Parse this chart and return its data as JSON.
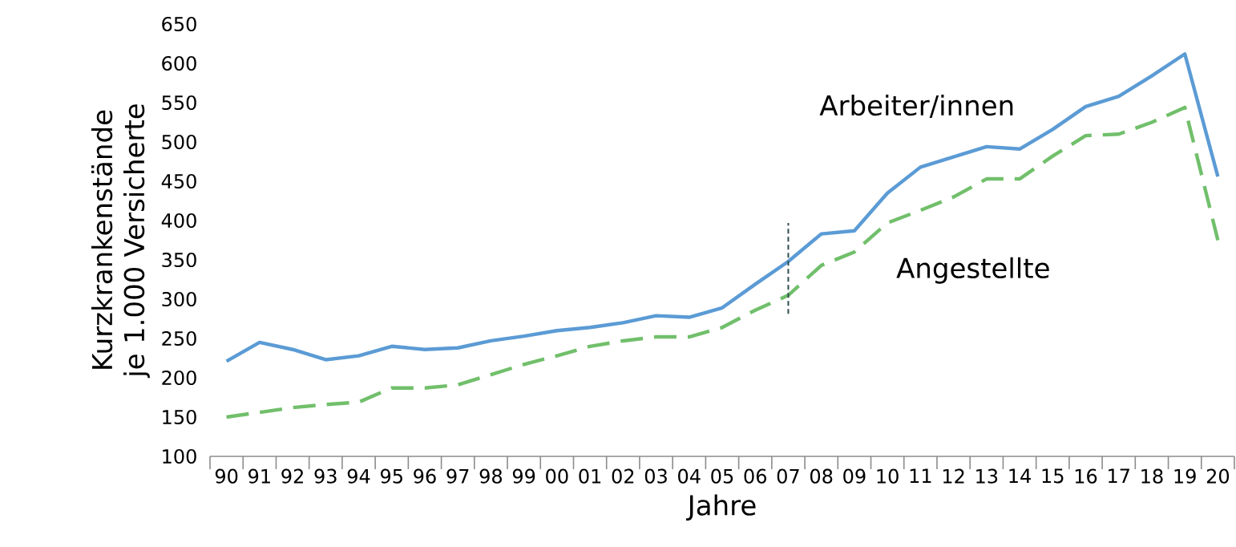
{
  "chart_data": {
    "type": "line",
    "xlabel": "Jahre",
    "ylabel": "Kurzkrankenstände je 1.000 Versicherte",
    "categories": [
      "90",
      "91",
      "92",
      "93",
      "94",
      "95",
      "96",
      "97",
      "98",
      "99",
      "00",
      "01",
      "02",
      "03",
      "04",
      "05",
      "06",
      "07",
      "08",
      "09",
      "10",
      "11",
      "12",
      "13",
      "14",
      "15",
      "16",
      "17",
      "18",
      "19",
      "20"
    ],
    "series": [
      {
        "name": "Arbeiter/innen",
        "color": "#5b9bd5",
        "line_style": "solid",
        "values": [
          221,
          245,
          236,
          223,
          228,
          240,
          236,
          238,
          247,
          253,
          260,
          264,
          270,
          279,
          277,
          289,
          319,
          348,
          383,
          387,
          435,
          468,
          481,
          494,
          491,
          516,
          545,
          558,
          584,
          612,
          456
        ]
      },
      {
        "name": "Angestellte",
        "color": "#71bf6b",
        "line_style": "dashed",
        "values": [
          150,
          156,
          162,
          166,
          169,
          187,
          187,
          191,
          204,
          217,
          228,
          240,
          247,
          252,
          252,
          264,
          286,
          305,
          343,
          360,
          397,
          413,
          430,
          453,
          453,
          482,
          508,
          510,
          525,
          544,
          375
        ]
      }
    ],
    "ref_lines": [
      {
        "axis": "x",
        "value": "07",
        "color": "#2f4f4f",
        "line_style": "dashed"
      }
    ],
    "ylim": [
      100,
      650
    ],
    "yticks": [
      100,
      150,
      200,
      250,
      300,
      350,
      400,
      450,
      500,
      550,
      600,
      650
    ],
    "grid": false,
    "legend": false,
    "marker": "none"
  }
}
